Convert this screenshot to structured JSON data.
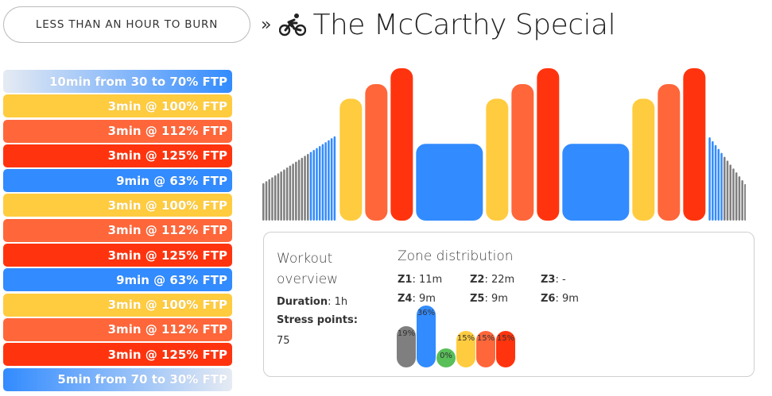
{
  "header": {
    "category_button": "LESS THAN AN HOUR TO BURN",
    "separator": "»",
    "workout_icon": "cyclist-icon",
    "title": "The McCarthy Special"
  },
  "colors": {
    "z1": "#7f7f7f",
    "z2": "#328bff",
    "z3": "#59bf59",
    "z4": "#ffcc3f",
    "z5": "#ff663a",
    "z6": "#ff340e"
  },
  "steps": [
    {
      "label": "10min from 30 to 70% FTP",
      "zone": "ramp-up"
    },
    {
      "label": "3min @ 100% FTP",
      "zone": "z4"
    },
    {
      "label": "3min @ 112% FTP",
      "zone": "z5"
    },
    {
      "label": "3min @ 125% FTP",
      "zone": "z6"
    },
    {
      "label": "9min @ 63% FTP",
      "zone": "z2"
    },
    {
      "label": "3min @ 100% FTP",
      "zone": "z4"
    },
    {
      "label": "3min @ 112% FTP",
      "zone": "z5"
    },
    {
      "label": "3min @ 125% FTP",
      "zone": "z6"
    },
    {
      "label": "9min @ 63% FTP",
      "zone": "z2"
    },
    {
      "label": "3min @ 100% FTP",
      "zone": "z4"
    },
    {
      "label": "3min @ 112% FTP",
      "zone": "z5"
    },
    {
      "label": "3min @ 125% FTP",
      "zone": "z6"
    },
    {
      "label": "5min from 70 to 30% FTP",
      "zone": "ramp-down"
    }
  ],
  "chart_data": {
    "type": "bar",
    "title": "",
    "xlabel": "",
    "ylabel": "",
    "unit": "% FTP",
    "ylim": [
      0,
      125
    ],
    "segments": [
      {
        "kind": "ramp",
        "minutes": 10,
        "from": 30,
        "to": 70
      },
      {
        "kind": "block",
        "minutes": 3,
        "value": 100,
        "zone": "z4"
      },
      {
        "kind": "block",
        "minutes": 3,
        "value": 112,
        "zone": "z5"
      },
      {
        "kind": "block",
        "minutes": 3,
        "value": 125,
        "zone": "z6"
      },
      {
        "kind": "block",
        "minutes": 9,
        "value": 63,
        "zone": "z2"
      },
      {
        "kind": "block",
        "minutes": 3,
        "value": 100,
        "zone": "z4"
      },
      {
        "kind": "block",
        "minutes": 3,
        "value": 112,
        "zone": "z5"
      },
      {
        "kind": "block",
        "minutes": 3,
        "value": 125,
        "zone": "z6"
      },
      {
        "kind": "block",
        "minutes": 9,
        "value": 63,
        "zone": "z2"
      },
      {
        "kind": "block",
        "minutes": 3,
        "value": 100,
        "zone": "z4"
      },
      {
        "kind": "block",
        "minutes": 3,
        "value": 112,
        "zone": "z5"
      },
      {
        "kind": "block",
        "minutes": 3,
        "value": 125,
        "zone": "z6"
      },
      {
        "kind": "ramp",
        "minutes": 5,
        "from": 70,
        "to": 30
      }
    ]
  },
  "overview": {
    "title": "Workout overview",
    "duration_label": "Duration",
    "duration_value": ": 1h",
    "stress_label": "Stress points",
    "stress_colon": ":",
    "stress_value": "75"
  },
  "zones": {
    "title": "Zone distribution",
    "items": [
      {
        "name": "Z1",
        "value": ": 11m",
        "pct": 19,
        "pct_label": "19%"
      },
      {
        "name": "Z2",
        "value": ": 22m",
        "pct": 36,
        "pct_label": "36%"
      },
      {
        "name": "Z3",
        "value": ": -",
        "pct": 0,
        "pct_label": "0%"
      },
      {
        "name": "Z4",
        "value": ": 9m",
        "pct": 15,
        "pct_label": "15%"
      },
      {
        "name": "Z5",
        "value": ": 9m",
        "pct": 15,
        "pct_label": "15%"
      },
      {
        "name": "Z6",
        "value": ": 9m",
        "pct": 15,
        "pct_label": "15%"
      }
    ]
  }
}
